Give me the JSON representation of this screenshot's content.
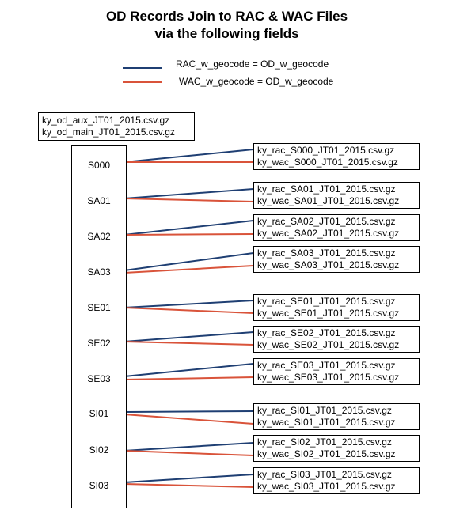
{
  "title": {
    "line1": "OD Records Join to RAC & WAC Files",
    "line2": "via the following fields"
  },
  "legend": [
    {
      "label": "RAC_w_geocode  =  OD_w_geocode",
      "color": "#1f3f73"
    },
    {
      "label": "WAC_w_geocode  =  OD_w_geocode",
      "color": "#d9533a"
    }
  ],
  "source_files": [
    "ky_od_aux_JT01_2015.csv.gz",
    "ky_od_main_JT01_2015.csv.gz"
  ],
  "groups": [
    {
      "code": "S000",
      "rac": "ky_rac_S000_JT01_2015.csv.gz",
      "wac": "ky_wac_S000_JT01_2015.csv.gz"
    },
    {
      "code": "SA01",
      "rac": "ky_rac_SA01_JT01_2015.csv.gz",
      "wac": "ky_wac_SA01_JT01_2015.csv.gz"
    },
    {
      "code": "SA02",
      "rac": "ky_rac_SA02_JT01_2015.csv.gz",
      "wac": "ky_wac_SA02_JT01_2015.csv.gz"
    },
    {
      "code": "SA03",
      "rac": "ky_rac_SA03_JT01_2015.csv.gz",
      "wac": "ky_wac_SA03_JT01_2015.csv.gz"
    },
    {
      "code": "SE01",
      "rac": "ky_rac_SE01_JT01_2015.csv.gz",
      "wac": "ky_wac_SE01_JT01_2015.csv.gz"
    },
    {
      "code": "SE02",
      "rac": "ky_rac_SE02_JT01_2015.csv.gz",
      "wac": "ky_wac_SE02_JT01_2015.csv.gz"
    },
    {
      "code": "SE03",
      "rac": "ky_rac_SE03_JT01_2015.csv.gz",
      "wac": "ky_wac_SE03_JT01_2015.csv.gz"
    },
    {
      "code": "SI01",
      "rac": "ky_rac_SI01_JT01_2015.csv.gz",
      "wac": "ky_wac_SI01_JT01_2015.csv.gz"
    },
    {
      "code": "SI02",
      "rac": "ky_rac_SI02_JT01_2015.csv.gz",
      "wac": "ky_wac_SI02_JT01_2015.csv.gz"
    },
    {
      "code": "SI03",
      "rac": "ky_rac_SI03_JT01_2015.csv.gz",
      "wac": "ky_wac_SI03_JT01_2015.csv.gz"
    }
  ]
}
